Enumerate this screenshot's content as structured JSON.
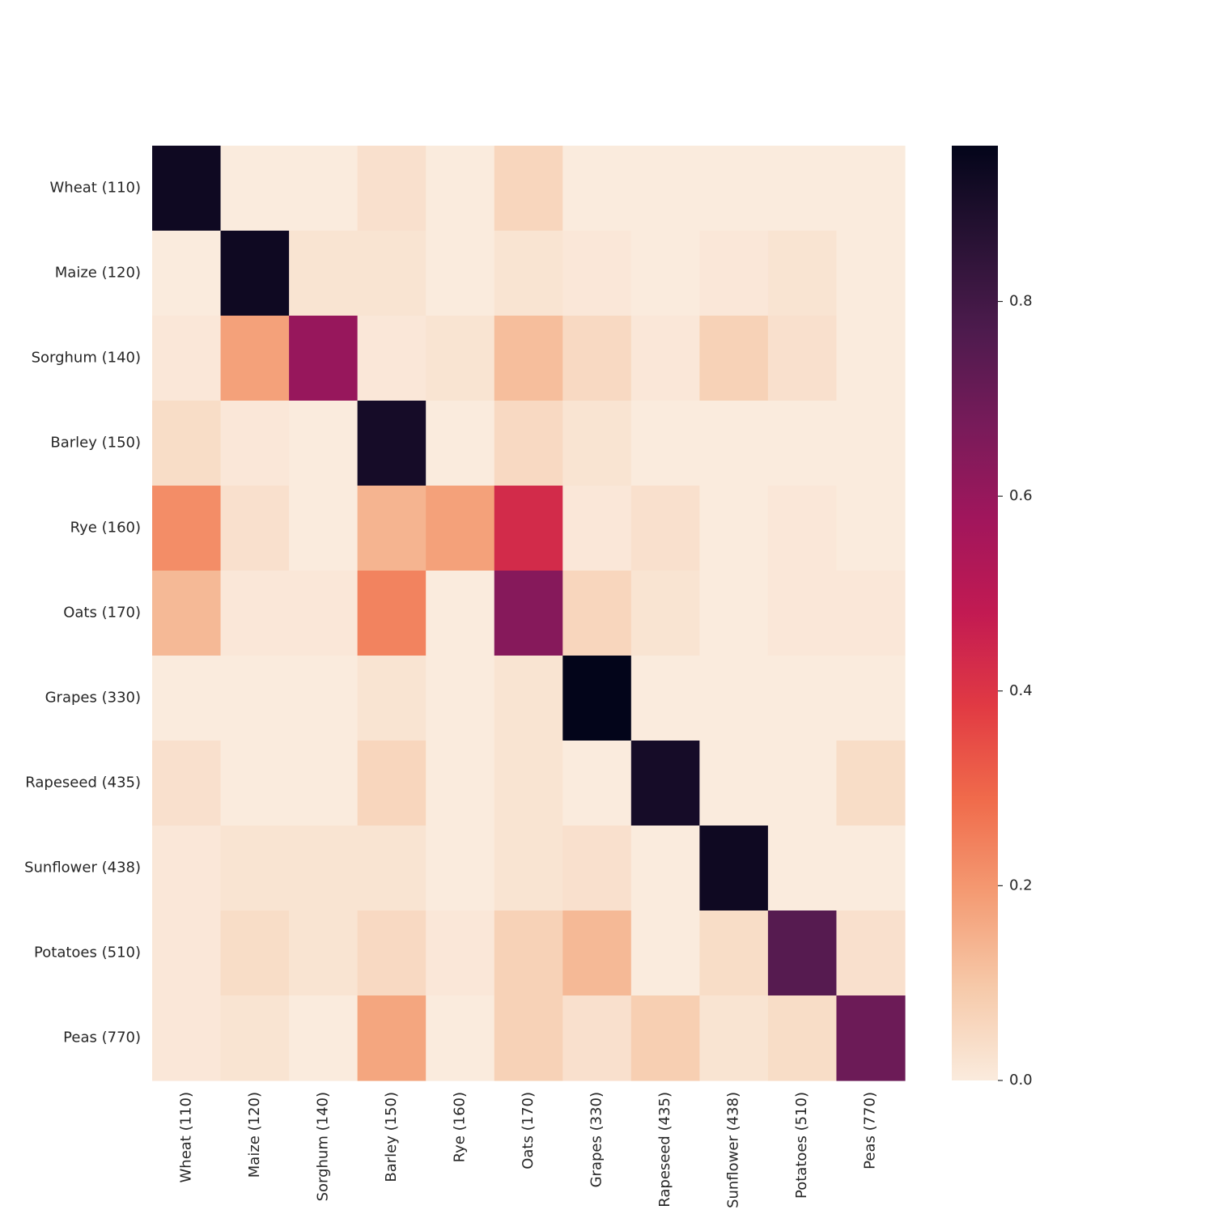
{
  "chart_data": {
    "type": "heatmap",
    "title": "",
    "xlabel": "",
    "ylabel": "",
    "rows": [
      "Wheat (110)",
      "Maize (120)",
      "Sorghum (140)",
      "Barley (150)",
      "Rye (160)",
      "Oats (170)",
      "Grapes (330)",
      "Rapeseed (435)",
      "Sunflower (438)",
      "Potatoes (510)",
      "Peas (770)"
    ],
    "columns": [
      "Wheat (110)",
      "Maize (120)",
      "Sorghum (140)",
      "Barley (150)",
      "Rye (160)",
      "Oats (170)",
      "Grapes (330)",
      "Rapeseed (435)",
      "Sunflower (438)",
      "Potatoes (510)",
      "Peas (770)"
    ],
    "values": [
      [
        0.93,
        0.0,
        0.0,
        0.03,
        0.0,
        0.06,
        0.0,
        0.0,
        0.0,
        0.0,
        0.0
      ],
      [
        0.0,
        0.93,
        0.02,
        0.02,
        0.0,
        0.02,
        0.01,
        0.0,
        0.01,
        0.02,
        0.0
      ],
      [
        0.01,
        0.18,
        0.6,
        0.01,
        0.02,
        0.12,
        0.05,
        0.01,
        0.07,
        0.03,
        0.0
      ],
      [
        0.04,
        0.01,
        0.0,
        0.91,
        0.0,
        0.05,
        0.02,
        0.0,
        0.0,
        0.0,
        0.0
      ],
      [
        0.22,
        0.03,
        0.0,
        0.14,
        0.18,
        0.43,
        0.01,
        0.03,
        0.0,
        0.01,
        0.0
      ],
      [
        0.13,
        0.01,
        0.01,
        0.24,
        0.0,
        0.64,
        0.06,
        0.02,
        0.0,
        0.01,
        0.01
      ],
      [
        0.0,
        0.0,
        0.0,
        0.02,
        0.0,
        0.02,
        0.96,
        0.0,
        0.0,
        0.0,
        0.0
      ],
      [
        0.03,
        0.0,
        0.0,
        0.06,
        0.0,
        0.02,
        0.0,
        0.91,
        0.0,
        0.0,
        0.04
      ],
      [
        0.01,
        0.02,
        0.02,
        0.02,
        0.0,
        0.02,
        0.03,
        0.0,
        0.93,
        0.0,
        0.0
      ],
      [
        0.01,
        0.04,
        0.02,
        0.05,
        0.01,
        0.07,
        0.13,
        0.0,
        0.04,
        0.75,
        0.03
      ],
      [
        0.01,
        0.02,
        0.0,
        0.17,
        0.0,
        0.07,
        0.03,
        0.08,
        0.02,
        0.04,
        0.7
      ]
    ],
    "vmin": 0.0,
    "vmax": 0.96,
    "colormap": "rocket_r",
    "colorbar": {
      "ticks": [
        0.0,
        0.2,
        0.4,
        0.6,
        0.8
      ],
      "tick_labels": [
        "0.0",
        "0.2",
        "0.4",
        "0.6",
        "0.8"
      ]
    },
    "grid": false
  }
}
